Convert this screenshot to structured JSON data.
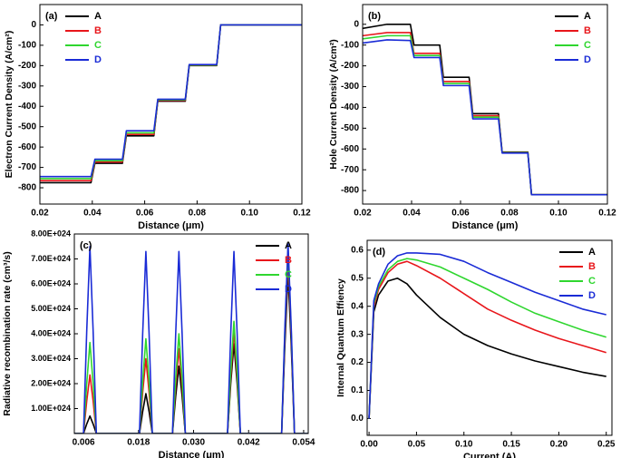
{
  "chart_data": [
    {
      "type": "line",
      "label": "(a)",
      "xlabel": "Distance (μm)",
      "ylabel": "Electron Current Density (A/cm²)",
      "x": [
        0.02,
        0.0395,
        0.041,
        0.0515,
        0.053,
        0.0635,
        0.065,
        0.0755,
        0.077,
        0.0875,
        0.089,
        0.12
      ],
      "series": [
        {
          "name": "A",
          "color": "#000000",
          "values": [
            -775,
            -775,
            -680,
            -680,
            -545,
            -545,
            -375,
            -375,
            -200,
            -200,
            0,
            0
          ]
        },
        {
          "name": "B",
          "color": "#e8161b",
          "values": [
            -765,
            -765,
            -673,
            -673,
            -538,
            -538,
            -371,
            -371,
            -198,
            -198,
            0,
            0
          ]
        },
        {
          "name": "C",
          "color": "#2fd62f",
          "values": [
            -755,
            -755,
            -667,
            -667,
            -530,
            -530,
            -368,
            -368,
            -197,
            -197,
            0,
            0
          ]
        },
        {
          "name": "D",
          "color": "#1a2bd6",
          "values": [
            -745,
            -745,
            -660,
            -660,
            -520,
            -520,
            -365,
            -365,
            -195,
            -195,
            0,
            0
          ]
        }
      ],
      "xlim": [
        0.02,
        0.12
      ],
      "xticks": [
        0.02,
        0.04,
        0.06,
        0.08,
        {
          "value": 0.1,
          "label": "0.10"
        },
        0.12
      ],
      "ylim": [
        -880,
        100
      ],
      "yticks": [
        0,
        -100,
        -200,
        -300,
        -400,
        -500,
        -600,
        -700,
        -800
      ],
      "legend": "upper left",
      "grid": false
    },
    {
      "type": "line",
      "label": "(b)",
      "xlabel": "Distance (μm)",
      "ylabel": "Hole Current Density (A/cm²)",
      "x": [
        0.02,
        0.03,
        0.0395,
        0.041,
        0.0515,
        0.053,
        0.0635,
        0.065,
        0.0755,
        0.077,
        0.0875,
        0.089,
        0.12
      ],
      "series": [
        {
          "name": "A",
          "color": "#000000",
          "values": [
            -20,
            0,
            0,
            -100,
            -100,
            -255,
            -255,
            -430,
            -430,
            -615,
            -615,
            -820,
            -820
          ]
        },
        {
          "name": "B",
          "color": "#e8161b",
          "values": [
            -55,
            -40,
            -40,
            -140,
            -140,
            -275,
            -275,
            -440,
            -440,
            -617,
            -617,
            -820,
            -820
          ]
        },
        {
          "name": "C",
          "color": "#2fd62f",
          "values": [
            -70,
            -55,
            -55,
            -150,
            -150,
            -285,
            -285,
            -447,
            -447,
            -618,
            -618,
            -820,
            -820
          ]
        },
        {
          "name": "D",
          "color": "#1a2bd6",
          "values": [
            -90,
            -75,
            -78,
            -160,
            -160,
            -295,
            -295,
            -455,
            -455,
            -620,
            -620,
            -820,
            -820
          ]
        }
      ],
      "xlim": [
        0.02,
        0.12
      ],
      "xticks": [
        0.02,
        0.04,
        0.06,
        0.08,
        {
          "value": 0.1,
          "label": "0.10"
        },
        0.12
      ],
      "ylim": [
        -865,
        95
      ],
      "yticks": [
        0,
        -100,
        -200,
        -300,
        -400,
        -500,
        -600,
        -700,
        -800
      ],
      "legend": "upper right",
      "grid": false
    },
    {
      "type": "line",
      "label": "(c)",
      "xlabel": "Distance (μm)",
      "ylabel": "Radiative recombination rate (cm³/s)",
      "x": [
        0.004,
        0.006,
        0.0067,
        0.0074,
        0.0081,
        0.0088,
        0.0182,
        0.0189,
        0.0196,
        0.0203,
        0.021,
        0.0254,
        0.0261,
        0.0268,
        0.0275,
        0.0282,
        0.0374,
        0.0381,
        0.0388,
        0.0395,
        0.0402,
        0.0492,
        0.0499,
        0.0506,
        0.0513,
        0.052,
        0.055
      ],
      "series": [
        {
          "name": "A",
          "color": "#000000",
          "values": [
            0,
            0,
            3.8e+23,
            7e+23,
            3.8e+23,
            0,
            0,
            8.8e+23,
            1.6e+24,
            8.8e+23,
            0,
            0,
            1.5e+24,
            2.7e+24,
            1.5e+24,
            0,
            0,
            2e+24,
            3.6e+24,
            2e+24,
            0,
            0,
            3.5e+24,
            6.4e+24,
            3.5e+24,
            0,
            0
          ]
        },
        {
          "name": "B",
          "color": "#e8161b",
          "values": [
            0,
            0,
            1.3e+24,
            2.35e+24,
            1.3e+24,
            0,
            0,
            1.65e+24,
            3e+24,
            1.65e+24,
            0,
            0,
            1.9e+24,
            3.4e+24,
            1.9e+24,
            0,
            0,
            2.25e+24,
            4.1e+24,
            2.25e+24,
            0,
            0,
            3.85e+24,
            7e+24,
            3.85e+24,
            0,
            0
          ]
        },
        {
          "name": "C",
          "color": "#2fd62f",
          "values": [
            0,
            0,
            2e+24,
            3.65e+24,
            2e+24,
            0,
            0,
            2.1e+24,
            3.8e+24,
            2.1e+24,
            0,
            0,
            2.2e+24,
            4e+24,
            2.2e+24,
            0,
            0,
            2.5e+24,
            4.5e+24,
            2.5e+24,
            0,
            0,
            4.05e+24,
            7.4e+24,
            4.05e+24,
            0,
            0
          ]
        },
        {
          "name": "D",
          "color": "#1a2bd6",
          "values": [
            0,
            0,
            4.1e+24,
            7.5e+24,
            4.1e+24,
            0,
            0,
            4e+24,
            7.3e+24,
            4e+24,
            0,
            0,
            4e+24,
            7.3e+24,
            4e+24,
            0,
            0,
            4e+24,
            7.3e+24,
            4e+24,
            0,
            0,
            4.2e+24,
            7.6e+24,
            4.2e+24,
            0,
            0
          ]
        }
      ],
      "xlim": [
        0.004,
        0.055
      ],
      "xticks": [
        0.006,
        0.018,
        {
          "value": 0.03,
          "label": "0.030"
        },
        0.042,
        0.054
      ],
      "ylim": [
        0,
        8e+24
      ],
      "yticks": [
        {
          "value": 1e+24,
          "label": "1.00E+024"
        },
        {
          "value": 2e+24,
          "label": "2.00E+024"
        },
        {
          "value": 3e+24,
          "label": "3.00E+024"
        },
        {
          "value": 4e+24,
          "label": "4.00E+024"
        },
        {
          "value": 5e+24,
          "label": "5.00E+024"
        },
        {
          "value": 6e+24,
          "label": "6.00E+024"
        },
        {
          "value": 7e+24,
          "label": "7.00E+024"
        },
        {
          "value": 8e+24,
          "label": "8.00E+024"
        }
      ],
      "legend": "upper right",
      "grid": false
    },
    {
      "type": "line",
      "label": "(d)",
      "xlabel": "Current (A)",
      "ylabel": "Internal Quantum Effiency",
      "x": [
        0,
        0.005,
        0.01,
        0.02,
        0.03,
        0.04,
        0.05,
        0.075,
        0.1,
        0.125,
        0.15,
        0.175,
        0.2,
        0.225,
        0.25
      ],
      "series": [
        {
          "name": "A",
          "color": "#000000",
          "values": [
            0,
            0.38,
            0.44,
            0.49,
            0.5,
            0.48,
            0.44,
            0.36,
            0.3,
            0.26,
            0.23,
            0.205,
            0.185,
            0.165,
            0.15
          ]
        },
        {
          "name": "B",
          "color": "#e8161b",
          "values": [
            0,
            0.4,
            0.46,
            0.52,
            0.55,
            0.56,
            0.545,
            0.5,
            0.445,
            0.39,
            0.35,
            0.315,
            0.285,
            0.26,
            0.235
          ]
        },
        {
          "name": "C",
          "color": "#2fd62f",
          "values": [
            0,
            0.41,
            0.47,
            0.53,
            0.56,
            0.57,
            0.565,
            0.54,
            0.5,
            0.46,
            0.415,
            0.375,
            0.345,
            0.315,
            0.29
          ]
        },
        {
          "name": "D",
          "color": "#1a2bd6",
          "values": [
            0,
            0.42,
            0.48,
            0.55,
            0.58,
            0.59,
            0.59,
            0.585,
            0.56,
            0.52,
            0.485,
            0.45,
            0.42,
            0.39,
            0.37
          ]
        }
      ],
      "xlim": [
        -0.002,
        0.256
      ],
      "xticks": [
        {
          "value": 0,
          "label": "0.00"
        },
        0.05,
        {
          "value": 0.1,
          "label": "0.10"
        },
        0.15,
        {
          "value": 0.2,
          "label": "0.20"
        },
        0.25
      ],
      "ylim": [
        -0.06,
        0.635
      ],
      "yticks": [
        {
          "value": 0,
          "label": "0.0"
        },
        0.1,
        0.2,
        0.3,
        0.4,
        0.5,
        0.6
      ],
      "legend": "upper right",
      "grid": false
    }
  ]
}
